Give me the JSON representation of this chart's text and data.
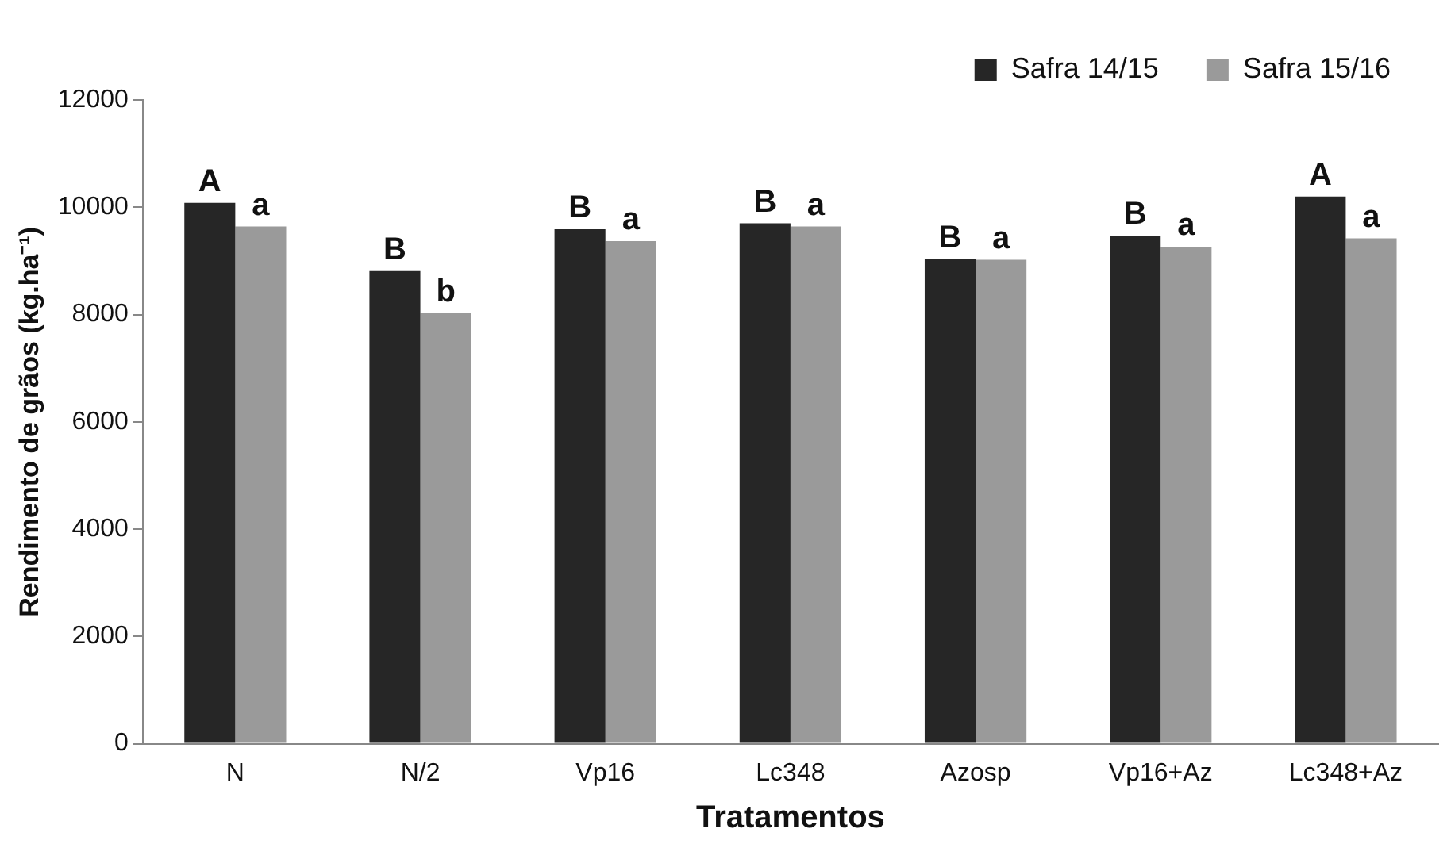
{
  "chart_data": {
    "type": "bar",
    "xlabel": "Tratamentos",
    "ylabel": "Rendimento de grãos (kg.ha⁻¹)",
    "categories": [
      "N",
      "N/2",
      "Vp16",
      "Lc348",
      "Azosp",
      "Vp16+Az",
      "Lc348+Az"
    ],
    "series": [
      {
        "name": "Safra 14/15",
        "color": "#262626",
        "values": [
          10080,
          8810,
          9590,
          9700,
          9030,
          9470,
          10200
        ]
      },
      {
        "name": "Safra 15/16",
        "color": "#9a9a9a",
        "values": [
          9640,
          8030,
          9370,
          9640,
          9020,
          9260,
          9420
        ]
      }
    ],
    "ylim": [
      0,
      12000
    ],
    "yticks": [
      0,
      2000,
      4000,
      6000,
      8000,
      10000,
      12000
    ],
    "grid": false,
    "legend": "top right",
    "annotations": [
      {
        "text": "A",
        "x": "N",
        "y": 10080
      },
      {
        "text": "a",
        "x": "N",
        "y": 9640
      },
      {
        "text": "B",
        "x": "N/2",
        "y": 8810
      },
      {
        "text": "b",
        "x": "N/2",
        "y": 8030
      },
      {
        "text": "B",
        "x": "Vp16",
        "y": 9590
      },
      {
        "text": "a",
        "x": "Vp16",
        "y": 9370
      },
      {
        "text": "B",
        "x": "Lc348",
        "y": 9700
      },
      {
        "text": "a",
        "x": "Lc348",
        "y": 9640
      },
      {
        "text": "B",
        "x": "Azosp",
        "y": 9030
      },
      {
        "text": "a",
        "x": "Azosp",
        "y": 9020
      },
      {
        "text": "B",
        "x": "Vp16+Az",
        "y": 9470
      },
      {
        "text": "a",
        "x": "Vp16+Az",
        "y": 9260
      },
      {
        "text": "A",
        "x": "Lc348+Az",
        "y": 10200
      },
      {
        "text": "a",
        "x": "Lc348+Az",
        "y": 9420
      }
    ]
  }
}
